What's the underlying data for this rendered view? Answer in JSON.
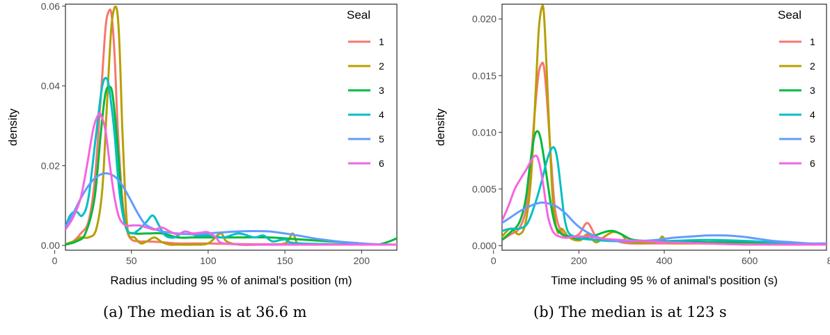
{
  "chart_data": [
    {
      "type": "line",
      "caption": "(a) The median is at 36.6 m",
      "xlabel": "Radius including 95 % of animal's position (m)",
      "ylabel": "density",
      "xlim": [
        7,
        223
      ],
      "ylim": [
        -0.0012,
        0.0605
      ],
      "xticks": [
        0,
        50,
        100,
        150,
        200
      ],
      "xtick_labels": [
        "0",
        "50",
        "100",
        "150",
        "200"
      ],
      "yticks": [
        0,
        0.02,
        0.04,
        0.06
      ],
      "ytick_labels": [
        "0.00",
        "0.02",
        "0.04",
        "0.06"
      ],
      "grid": false,
      "legend": {
        "title": "Seal",
        "placement": "right"
      },
      "series": [
        {
          "name": "1",
          "color": "#F8766D",
          "x": [
            7,
            12,
            17,
            22,
            26,
            30,
            33,
            35,
            37,
            39,
            41,
            44,
            47,
            50,
            55,
            60,
            70,
            80,
            90,
            100,
            110,
            130,
            150,
            180,
            223
          ],
          "y": [
            0.0003,
            0.001,
            0.003,
            0.006,
            0.016,
            0.037,
            0.054,
            0.0585,
            0.058,
            0.048,
            0.03,
            0.012,
            0.004,
            0.0015,
            0.001,
            0.001,
            0.0008,
            0.0005,
            0.0005,
            0.0005,
            0.0004,
            0.0003,
            0.0003,
            0.0002,
            0.0002
          ]
        },
        {
          "name": "2",
          "color": "#B79F00",
          "x": [
            7,
            12,
            17,
            22,
            27,
            31,
            34,
            37,
            40,
            42,
            44,
            46,
            48,
            52,
            56,
            60,
            65,
            70,
            75,
            80,
            90,
            100,
            108,
            112,
            120,
            135,
            150,
            155,
            158,
            162,
            180,
            223
          ],
          "y": [
            0.0003,
            0.001,
            0.002,
            0.002,
            0.004,
            0.014,
            0.035,
            0.055,
            0.0598,
            0.052,
            0.03,
            0.012,
            0.003,
            0.002,
            0.0005,
            0.001,
            0.002,
            0.0008,
            0.0002,
            0.0002,
            0.0002,
            0.0005,
            0.003,
            0.001,
            0.0002,
            0.0002,
            0.0005,
            0.003,
            0.0005,
            0.0002,
            0.0002,
            0.0002
          ]
        },
        {
          "name": "3",
          "color": "#00BA38",
          "x": [
            7,
            14,
            20,
            26,
            30,
            33,
            36,
            38,
            41,
            44,
            47,
            52,
            60,
            70,
            80,
            90,
            100,
            120,
            140,
            160,
            180,
            200,
            210,
            218,
            223
          ],
          "y": [
            0.0002,
            0.001,
            0.003,
            0.012,
            0.028,
            0.038,
            0.0398,
            0.037,
            0.025,
            0.01,
            0.004,
            0.003,
            0.003,
            0.003,
            0.002,
            0.002,
            0.002,
            0.002,
            0.002,
            0.0015,
            0.001,
            0.0005,
            0.0002,
            0.001,
            0.0018
          ]
        },
        {
          "name": "4",
          "color": "#00BFC4",
          "x": [
            7,
            10,
            14,
            18,
            22,
            27,
            31,
            34,
            36,
            39,
            42,
            46,
            50,
            55,
            60,
            64,
            68,
            72,
            78,
            85,
            92,
            100,
            110,
            120,
            130,
            136,
            142,
            150,
            160,
            223
          ],
          "y": [
            0.0045,
            0.0075,
            0.0085,
            0.0075,
            0.012,
            0.028,
            0.04,
            0.0418,
            0.038,
            0.028,
            0.014,
            0.005,
            0.003,
            0.004,
            0.006,
            0.0075,
            0.005,
            0.0025,
            0.002,
            0.0035,
            0.0025,
            0.0025,
            0.002,
            0.003,
            0.002,
            0.0025,
            0.001,
            0.0015,
            0.0005,
            0.0002
          ]
        },
        {
          "name": "5",
          "color": "#619CFF",
          "x": [
            7,
            12,
            18,
            24,
            30,
            35,
            40,
            45,
            50,
            55,
            60,
            70,
            80,
            90,
            100,
            110,
            120,
            130,
            140,
            150,
            160,
            170,
            180,
            190,
            200,
            210,
            223
          ],
          "y": [
            0.0045,
            0.008,
            0.0125,
            0.016,
            0.0178,
            0.018,
            0.017,
            0.0145,
            0.011,
            0.0075,
            0.005,
            0.0035,
            0.003,
            0.0028,
            0.003,
            0.0033,
            0.0035,
            0.0036,
            0.0035,
            0.003,
            0.0024,
            0.0017,
            0.0012,
            0.0008,
            0.0005,
            0.0003,
            0.0002
          ]
        },
        {
          "name": "6",
          "color": "#F564E3",
          "x": [
            7,
            12,
            17,
            21,
            25,
            28,
            30,
            33,
            36,
            39,
            42,
            46,
            50,
            55,
            60,
            65,
            70,
            75,
            80,
            85,
            90,
            95,
            100,
            105,
            110,
            130,
            160,
            223
          ],
          "y": [
            0.004,
            0.007,
            0.012,
            0.02,
            0.029,
            0.0325,
            0.0328,
            0.029,
            0.02,
            0.012,
            0.007,
            0.005,
            0.005,
            0.005,
            0.0045,
            0.004,
            0.0045,
            0.0035,
            0.0028,
            0.0035,
            0.003,
            0.0032,
            0.0033,
            0.002,
            0.0005,
            0.0002,
            0.0002,
            0.0002
          ]
        }
      ]
    },
    {
      "type": "line",
      "caption": "(b) The median is at 123 s",
      "xlabel": "Time including 95 % of animal's position (s)",
      "ylabel": "density",
      "xlim": [
        20,
        780
      ],
      "ylim": [
        -0.0004,
        0.0213
      ],
      "xticks": [
        0,
        200,
        400,
        600,
        800
      ],
      "xtick_labels": [
        "0",
        "200",
        "400",
        "600",
        "800"
      ],
      "yticks": [
        0,
        0.005,
        0.01,
        0.015,
        0.02
      ],
      "ytick_labels": [
        "0.000",
        "0.005",
        "0.010",
        "0.015",
        "0.020"
      ],
      "grid": false,
      "legend": {
        "title": "Seal",
        "placement": "right"
      },
      "series": [
        {
          "name": "1",
          "color": "#F8766D",
          "x": [
            20,
            40,
            60,
            75,
            85,
            95,
            105,
            112,
            118,
            125,
            135,
            145,
            160,
            180,
            200,
            220,
            240,
            260,
            280,
            300,
            320,
            400,
            500,
            600,
            780
          ],
          "y": [
            0.0005,
            0.001,
            0.0015,
            0.003,
            0.006,
            0.011,
            0.015,
            0.016,
            0.0158,
            0.013,
            0.0075,
            0.003,
            0.0012,
            0.0008,
            0.001,
            0.002,
            0.0008,
            0.0005,
            0.0005,
            0.0003,
            0.0002,
            0.0002,
            0.0002,
            0.0001,
            0.0001
          ]
        },
        {
          "name": "2",
          "color": "#B79F00",
          "x": [
            20,
            40,
            60,
            75,
            88,
            98,
            106,
            113,
            118,
            124,
            132,
            140,
            150,
            160,
            175,
            190,
            205,
            220,
            240,
            260,
            280,
            300,
            320,
            380,
            395,
            405,
            420,
            500,
            600,
            780
          ],
          "y": [
            0.0008,
            0.0015,
            0.001,
            0.002,
            0.006,
            0.013,
            0.019,
            0.021,
            0.0205,
            0.016,
            0.009,
            0.0035,
            0.0012,
            0.0015,
            0.0008,
            0.0005,
            0.0005,
            0.001,
            0.0003,
            0.0008,
            0.0012,
            0.001,
            0.0003,
            0.0003,
            0.0008,
            0.0003,
            0.0002,
            0.0002,
            0.0001,
            0.0001
          ]
        },
        {
          "name": "3",
          "color": "#00BA38",
          "x": [
            20,
            40,
            60,
            75,
            85,
            95,
            103,
            110,
            117,
            125,
            135,
            145,
            160,
            180,
            200,
            230,
            260,
            280,
            300,
            330,
            400,
            500,
            600,
            700,
            780
          ],
          "y": [
            0.0005,
            0.0012,
            0.002,
            0.004,
            0.007,
            0.0095,
            0.0101,
            0.0095,
            0.008,
            0.006,
            0.0035,
            0.0018,
            0.001,
            0.0008,
            0.0006,
            0.0008,
            0.0012,
            0.0013,
            0.001,
            0.0005,
            0.0004,
            0.0003,
            0.0003,
            0.0002,
            0.0001
          ]
        },
        {
          "name": "4",
          "color": "#00BFC4",
          "x": [
            20,
            40,
            60,
            80,
            100,
            115,
            125,
            135,
            143,
            150,
            158,
            166,
            175,
            190,
            210,
            240,
            280,
            320,
            400,
            500,
            600,
            700,
            780
          ],
          "y": [
            0.0013,
            0.0015,
            0.0015,
            0.002,
            0.004,
            0.006,
            0.0075,
            0.0085,
            0.0086,
            0.0075,
            0.005,
            0.0025,
            0.0012,
            0.0008,
            0.0006,
            0.0005,
            0.0004,
            0.0004,
            0.0004,
            0.0005,
            0.0004,
            0.0002,
            0.0001
          ]
        },
        {
          "name": "5",
          "color": "#619CFF",
          "x": [
            20,
            40,
            60,
            80,
            100,
            115,
            130,
            150,
            170,
            190,
            210,
            240,
            270,
            300,
            340,
            380,
            420,
            460,
            500,
            540,
            580,
            620,
            660,
            700,
            740,
            780
          ],
          "y": [
            0.002,
            0.0025,
            0.003,
            0.0034,
            0.0037,
            0.0038,
            0.0037,
            0.0034,
            0.0028,
            0.002,
            0.0014,
            0.0008,
            0.0005,
            0.0004,
            0.0004,
            0.0005,
            0.0007,
            0.0008,
            0.0009,
            0.0009,
            0.0008,
            0.0006,
            0.0004,
            0.0003,
            0.0002,
            0.0002
          ]
        },
        {
          "name": "6",
          "color": "#F564E3",
          "x": [
            20,
            35,
            50,
            65,
            78,
            88,
            96,
            103,
            110,
            118,
            128,
            140,
            155,
            170,
            190,
            220,
            260,
            300,
            350,
            400,
            500,
            600,
            780
          ],
          "y": [
            0.0022,
            0.0035,
            0.005,
            0.006,
            0.0068,
            0.0075,
            0.0079,
            0.0078,
            0.0068,
            0.005,
            0.0025,
            0.0012,
            0.0008,
            0.0007,
            0.0008,
            0.0008,
            0.0006,
            0.0005,
            0.0004,
            0.0003,
            0.0002,
            0.0001,
            0.0001
          ]
        }
      ]
    }
  ]
}
